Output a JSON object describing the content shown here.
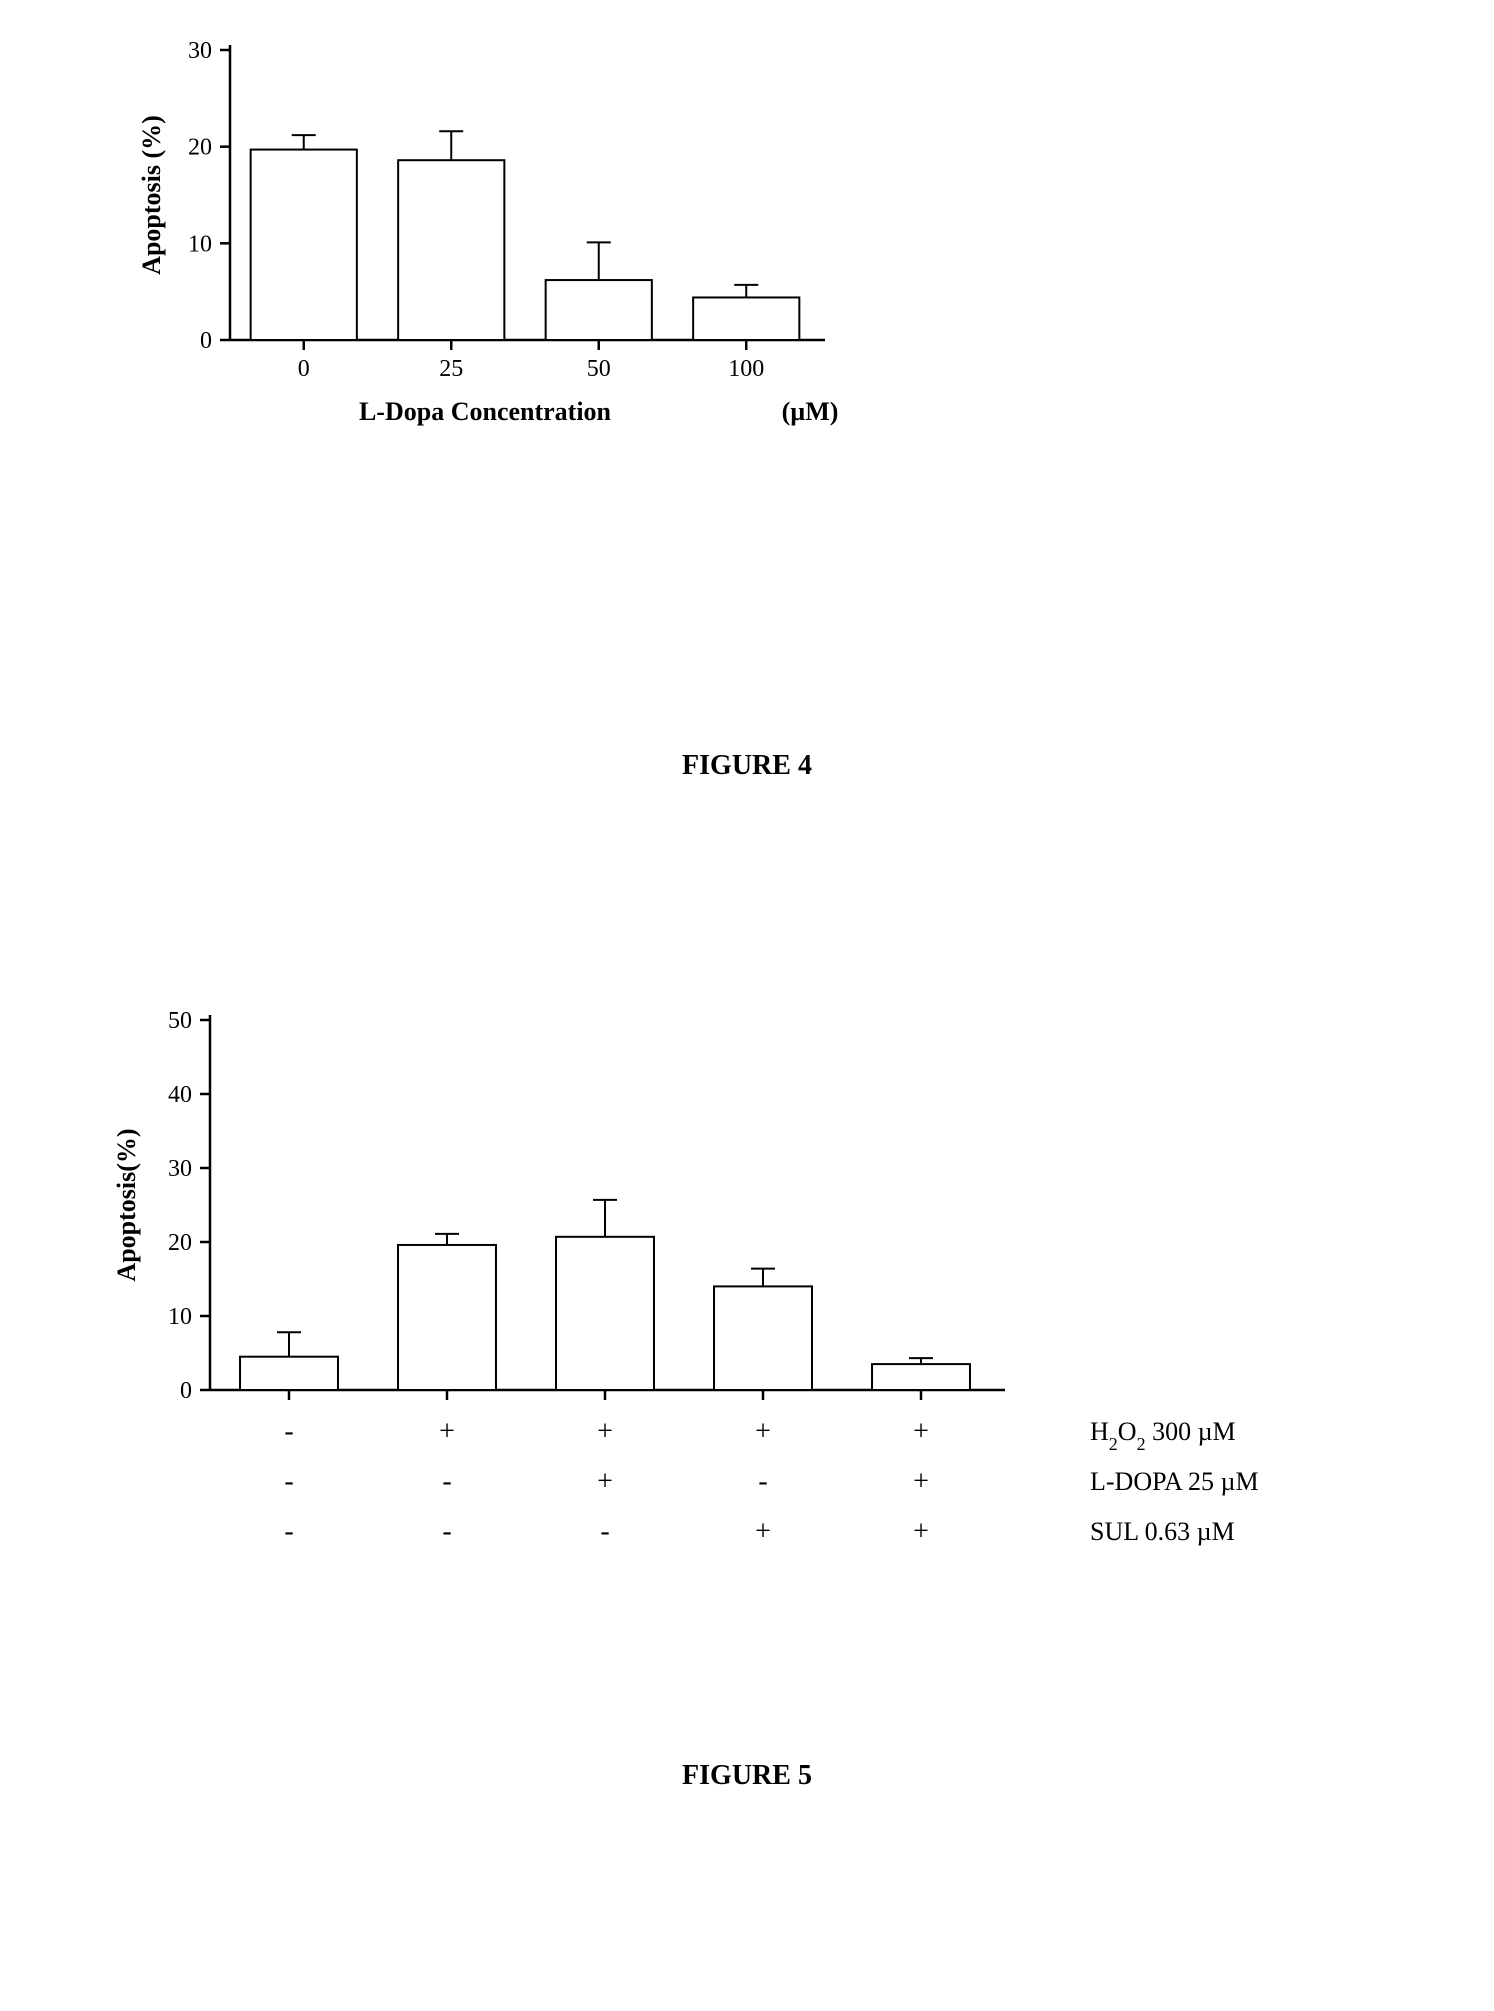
{
  "figure4": {
    "type": "bar",
    "caption": "FIGURE 4",
    "ylabel": "Apoptosis (%)",
    "xlabel": "L-Dopa Concentration",
    "xlabel_unit": "(µM)",
    "ylim": [
      0,
      30
    ],
    "yticks": [
      0,
      10,
      20,
      30
    ],
    "categories": [
      "0",
      "25",
      "50",
      "100"
    ],
    "values": [
      19.7,
      18.6,
      6.2,
      4.4
    ],
    "errors": [
      1.5,
      3.0,
      3.9,
      1.3
    ],
    "bar_fill": "#ffffff",
    "bar_stroke": "#000000",
    "bar_stroke_width": 2,
    "axis_color": "#000000",
    "axis_width": 2.5,
    "label_fontsize": 26,
    "tick_fontsize": 24,
    "bar_width_ratio": 0.72,
    "errorbar_width": 2,
    "errorbar_cap": 12
  },
  "figure5": {
    "type": "bar",
    "caption": "FIGURE 5",
    "ylabel": "Apoptosis(%)",
    "ylim": [
      0,
      50
    ],
    "yticks": [
      0,
      10,
      20,
      30,
      40,
      50
    ],
    "values": [
      4.5,
      19.6,
      20.7,
      14.0,
      3.5
    ],
    "errors": [
      3.3,
      1.5,
      5.0,
      2.4,
      0.8
    ],
    "bar_fill": "#ffffff",
    "bar_stroke": "#000000",
    "bar_stroke_width": 2,
    "axis_color": "#000000",
    "axis_width": 2.5,
    "label_fontsize": 26,
    "tick_fontsize": 24,
    "bar_width_ratio": 0.62,
    "errorbar_width": 2,
    "errorbar_cap": 12,
    "condition_labels": [
      "H",
      "L-DOPA 25 µM",
      "SUL 0.63 µM"
    ],
    "condition_label_h2o2": "H₂O₂ 300 µM",
    "conditions": [
      {
        "h2o2": "-",
        "ldopa": "-",
        "sul": "-"
      },
      {
        "h2o2": "+",
        "ldopa": "-",
        "sul": "-"
      },
      {
        "h2o2": "+",
        "ldopa": "+",
        "sul": "-"
      },
      {
        "h2o2": "+",
        "ldopa": "-",
        "sul": "+"
      },
      {
        "h2o2": "+",
        "ldopa": "+",
        "sul": "+"
      }
    ]
  }
}
